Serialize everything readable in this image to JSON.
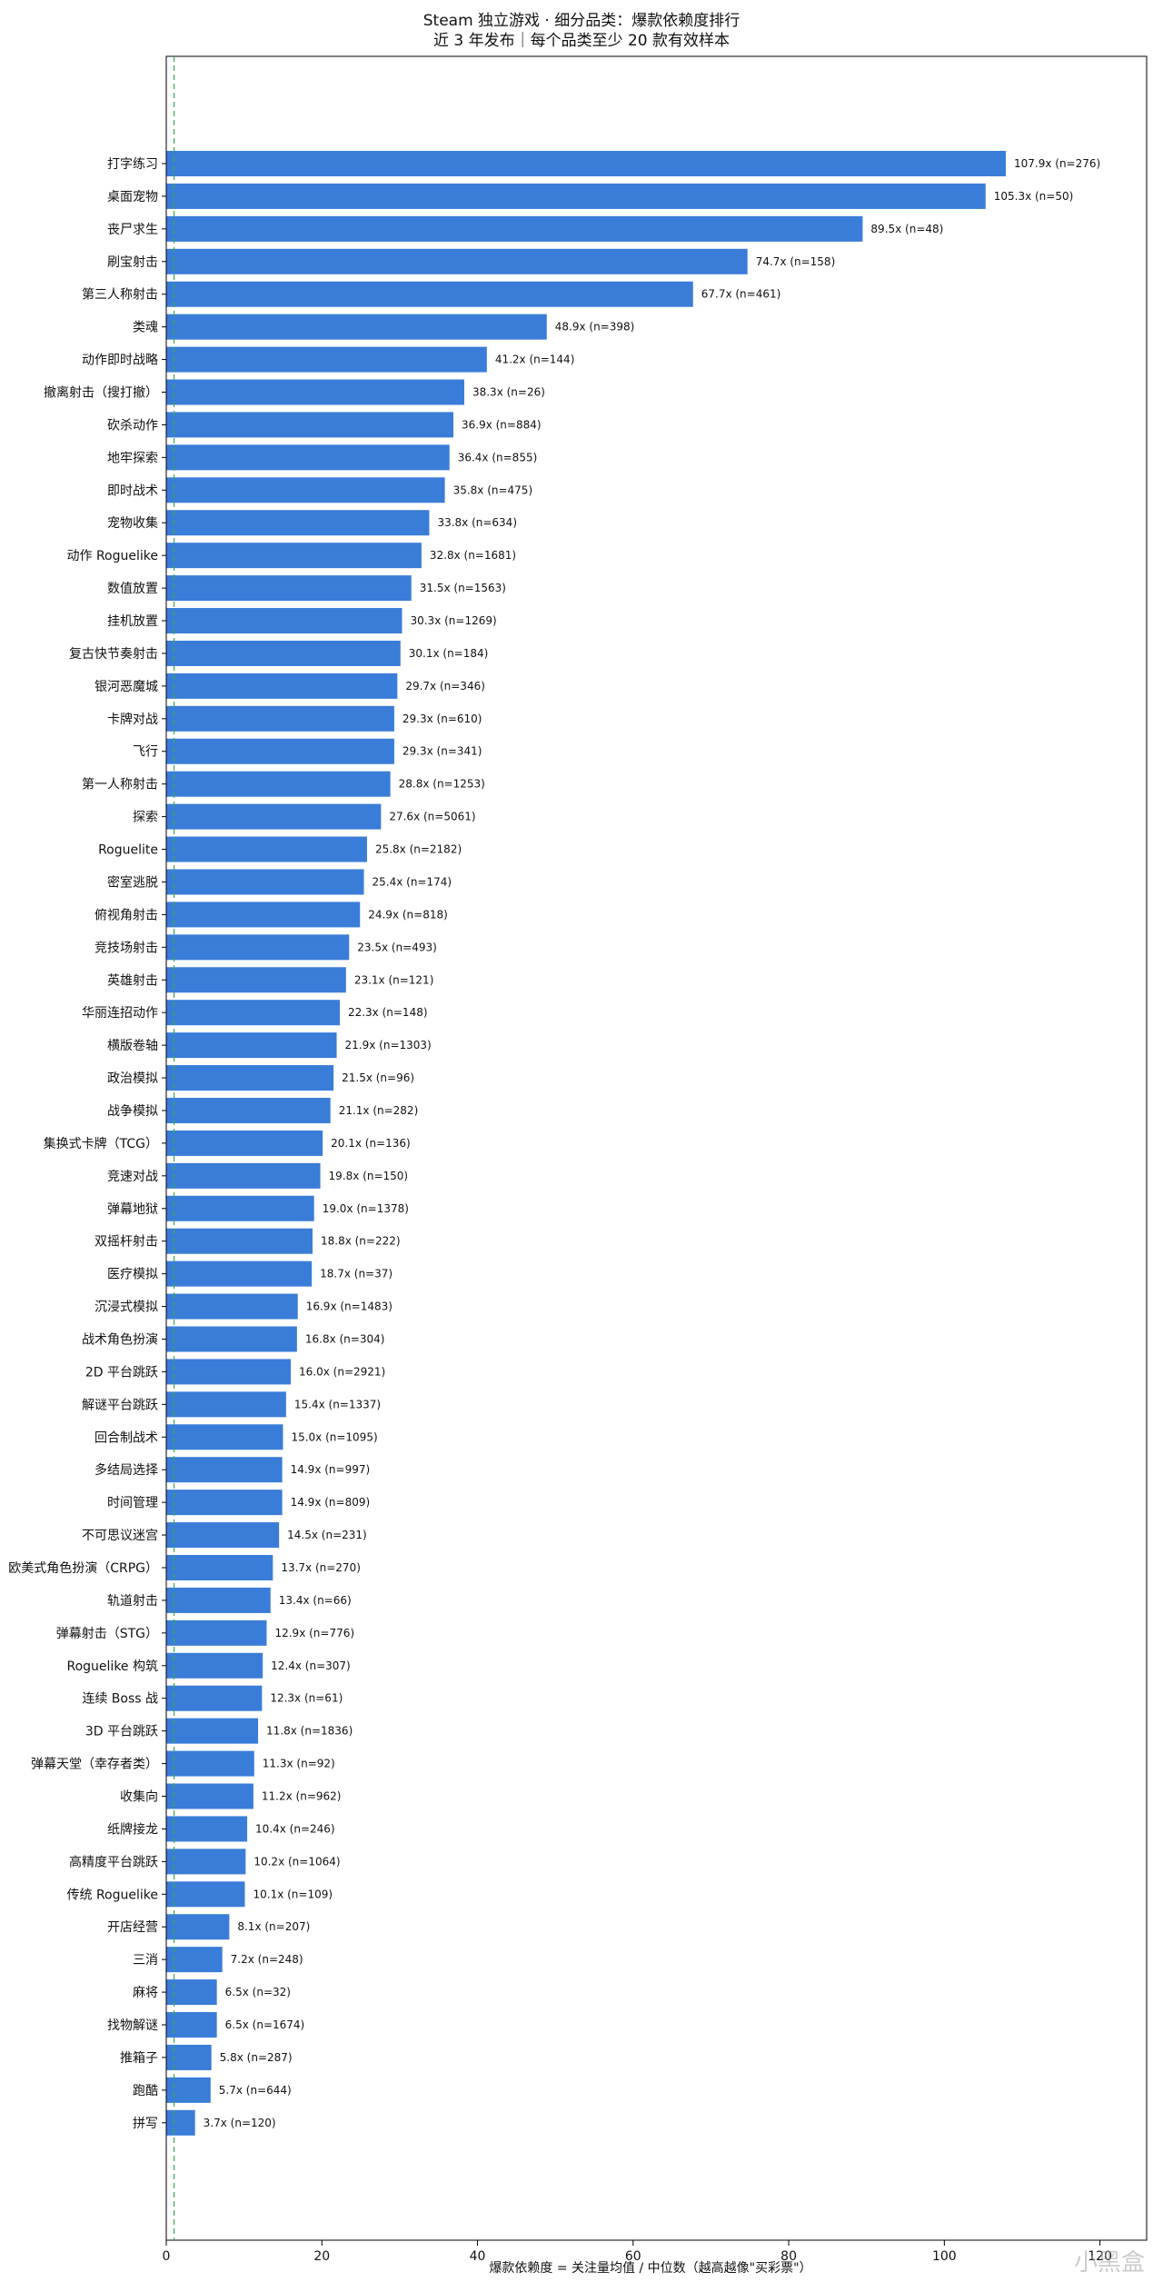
{
  "chart_data": {
    "type": "bar",
    "orientation": "horizontal",
    "title": "Steam 独立游戏 · 细分品类：爆款依赖度排行",
    "subtitle": "近 3 年发布｜每个品类至少 20 款有效样本",
    "xlabel": "爆款依赖度 = 关注量均值 / 中位数（越高越像\"买彩票\"）",
    "ylabel": "",
    "xlim": [
      0,
      126
    ],
    "xticks": [
      0,
      20,
      40,
      60,
      80,
      100,
      120
    ],
    "reference_line": 1,
    "grid": false,
    "bar_color": "#3a7dd8",
    "reference_line_color": "#3aa655",
    "categories": [
      "打字练习",
      "桌面宠物",
      "丧尸求生",
      "刷宝射击",
      "第三人称射击",
      "类魂",
      "动作即时战略",
      "撤离射击（搜打撤）",
      "砍杀动作",
      "地牢探索",
      "即时战术",
      "宠物收集",
      "动作 Roguelike",
      "数值放置",
      "挂机放置",
      "复古快节奏射击",
      "银河恶魔城",
      "卡牌对战",
      "飞行",
      "第一人称射击",
      "探索",
      "Roguelite",
      "密室逃脱",
      "俯视角射击",
      "竞技场射击",
      "英雄射击",
      "华丽连招动作",
      "横版卷轴",
      "政治模拟",
      "战争模拟",
      "集换式卡牌（TCG）",
      "竞速对战",
      "弹幕地狱",
      "双摇杆射击",
      "医疗模拟",
      "沉浸式模拟",
      "战术角色扮演",
      "2D 平台跳跃",
      "解谜平台跳跃",
      "回合制战术",
      "多结局选择",
      "时间管理",
      "不可思议迷宫",
      "欧美式角色扮演（CRPG）",
      "轨道射击",
      "弹幕射击（STG）",
      "Roguelike 构筑",
      "连续 Boss 战",
      "3D 平台跳跃",
      "弹幕天堂（幸存者类）",
      "收集向",
      "纸牌接龙",
      "高精度平台跳跃",
      "传统 Roguelike",
      "开店经营",
      "三消",
      "麻将",
      "找物解谜",
      "推箱子",
      "跑酷",
      "拼写"
    ],
    "values": [
      107.9,
      105.3,
      89.5,
      74.7,
      67.7,
      48.9,
      41.2,
      38.3,
      36.9,
      36.4,
      35.8,
      33.8,
      32.8,
      31.5,
      30.3,
      30.1,
      29.7,
      29.3,
      29.3,
      28.8,
      27.6,
      25.8,
      25.4,
      24.9,
      23.5,
      23.1,
      22.3,
      21.9,
      21.5,
      21.1,
      20.1,
      19.8,
      19.0,
      18.8,
      18.7,
      16.9,
      16.8,
      16.0,
      15.4,
      15.0,
      14.9,
      14.9,
      14.5,
      13.7,
      13.4,
      12.9,
      12.4,
      12.3,
      11.8,
      11.3,
      11.2,
      10.4,
      10.2,
      10.1,
      8.1,
      7.2,
      6.5,
      6.5,
      5.8,
      5.7,
      3.7
    ],
    "data_labels": [
      "107.9x  (n=276)",
      "105.3x  (n=50)",
      "89.5x  (n=48)",
      "74.7x  (n=158)",
      "67.7x  (n=461)",
      "48.9x  (n=398)",
      "41.2x  (n=144)",
      "38.3x  (n=26)",
      "36.9x  (n=884)",
      "36.4x  (n=855)",
      "35.8x  (n=475)",
      "33.8x  (n=634)",
      "32.8x  (n=1681)",
      "31.5x  (n=1563)",
      "30.3x  (n=1269)",
      "30.1x  (n=184)",
      "29.7x  (n=346)",
      "29.3x  (n=610)",
      "29.3x  (n=341)",
      "28.8x  (n=1253)",
      "27.6x  (n=5061)",
      "25.8x  (n=2182)",
      "25.4x  (n=174)",
      "24.9x  (n=818)",
      "23.5x  (n=493)",
      "23.1x  (n=121)",
      "22.3x  (n=148)",
      "21.9x  (n=1303)",
      "21.5x  (n=96)",
      "21.1x  (n=282)",
      "20.1x  (n=136)",
      "19.8x  (n=150)",
      "19.0x  (n=1378)",
      "18.8x  (n=222)",
      "18.7x  (n=37)",
      "16.9x  (n=1483)",
      "16.8x  (n=304)",
      "16.0x  (n=2921)",
      "15.4x  (n=1337)",
      "15.0x  (n=1095)",
      "14.9x  (n=997)",
      "14.9x  (n=809)",
      "14.5x  (n=231)",
      "13.7x  (n=270)",
      "13.4x  (n=66)",
      "12.9x  (n=776)",
      "12.4x  (n=307)",
      "12.3x  (n=61)",
      "11.8x  (n=1836)",
      "11.3x  (n=92)",
      "11.2x  (n=962)",
      "10.4x  (n=246)",
      "10.2x  (n=1064)",
      "10.1x  (n=109)",
      "8.1x  (n=207)",
      "7.2x  (n=248)",
      "6.5x  (n=32)",
      "6.5x  (n=1674)",
      "5.8x  (n=287)",
      "5.7x  (n=644)",
      "3.7x  (n=120)"
    ]
  },
  "watermark": "小黑盒"
}
